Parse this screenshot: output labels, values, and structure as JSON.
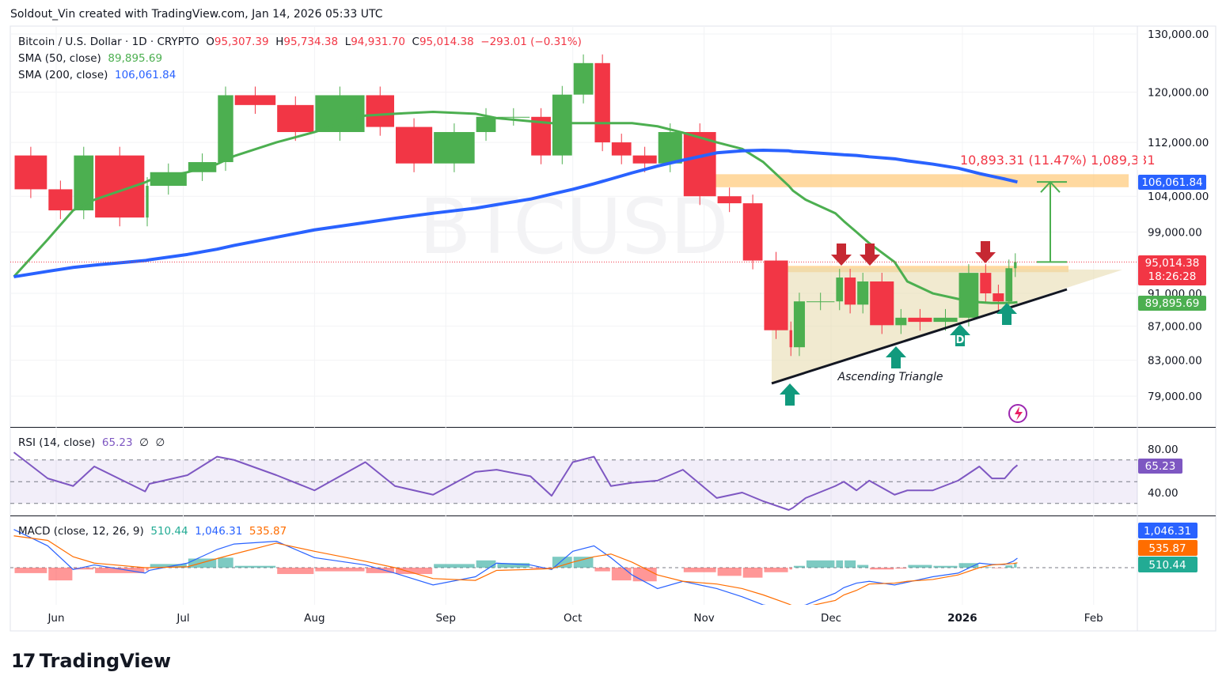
{
  "credit": "Soldout_Vin created with TradingView.com, Jan 14, 2026 05:33 UTC",
  "legend": {
    "symbol": "Bitcoin / U.S. Dollar · 1D · CRYPTO",
    "o_label": "O",
    "o": "95,307.39",
    "h_label": "H",
    "h": "95,734.38",
    "l_label": "L",
    "l": "94,931.70",
    "c_label": "C",
    "c": "95,014.38",
    "change": "−293.01 (−0.31%)",
    "sma50_label": "SMA (50, close)",
    "sma50": "89,895.69",
    "sma200_label": "SMA (200, close)",
    "sma200": "106,061.84"
  },
  "rsi_legend": {
    "label": "RSI (14, close)",
    "value": "65.23",
    "extra1": "∅",
    "extra2": "∅"
  },
  "macd_legend": {
    "label": "MACD (close, 12, 26, 9)",
    "hist": "510.44",
    "macd": "1,046.31",
    "signal": "535.87"
  },
  "watermark": "BTCUSD",
  "annotations": {
    "pattern": "Ascending Triangle",
    "point_label": "D",
    "measure": "10,893.31 (11.47%) 1,089,331"
  },
  "badges": {
    "price": "95,014.38",
    "countdown": "18:26:28",
    "sma200": "106,061.84",
    "sma50": "89,895.69",
    "rsi": "65.23",
    "macd": "1,046.31",
    "signal": "535.87",
    "hist": "510.44"
  },
  "brand": "TradingView",
  "colors": {
    "up": "#4caf50",
    "down": "#f23645",
    "sma50": "#4caf50",
    "sma200": "#2962ff",
    "rsi": "#7e57c2",
    "macd": "#2962ff",
    "signal": "#ff6d00",
    "zone": "#ffcc80",
    "triangle": "#e8dcb0",
    "arrow_down": "#c62832",
    "arrow_up": "#119a7d"
  },
  "chart_data": [
    {
      "type": "candlestick",
      "title": "Bitcoin / U.S. Dollar · 1D · CRYPTO",
      "y_scale": "log",
      "ylim": [
        77000,
        131000
      ],
      "y_ticks": [
        "130,000.00",
        "120,000.00",
        "112,000.00",
        "104,000.00",
        "99,000.00",
        "91,000.00",
        "87,000.00",
        "83,000.00",
        "79,000.00"
      ],
      "x_ticks": [
        "Jun",
        "Jul",
        "Aug",
        "Sep",
        "Oct",
        "Nov",
        "Dec",
        "2026",
        "Feb"
      ],
      "dates": [
        "2025-05-22",
        "2025-05-30",
        "2025-06-05",
        "2025-06-10",
        "2025-06-22",
        "2025-06-23",
        "2025-07-02",
        "2025-07-09",
        "2025-07-13",
        "2025-07-23",
        "2025-08-01",
        "2025-08-13",
        "2025-08-20",
        "2025-08-29",
        "2025-09-08",
        "2025-09-13",
        "2025-09-21",
        "2025-09-26",
        "2025-10-01",
        "2025-10-06",
        "2025-10-10",
        "2025-10-15",
        "2025-10-21",
        "2025-10-27",
        "2025-11-04",
        "2025-11-10",
        "2025-11-15",
        "2025-11-21",
        "2025-11-22",
        "2025-11-25",
        "2025-12-02",
        "2025-12-04",
        "2025-12-07",
        "2025-12-10",
        "2025-12-16",
        "2025-12-19",
        "2025-12-25",
        "2025-12-31",
        "2026-01-05",
        "2026-01-08",
        "2026-01-11",
        "2026-01-13",
        "2026-01-14"
      ],
      "close": [
        110000,
        105000,
        102000,
        110000,
        101000,
        105500,
        107500,
        109000,
        119500,
        117900,
        113600,
        119500,
        114400,
        108800,
        113600,
        116000,
        116000,
        110000,
        119600,
        124900,
        112000,
        110000,
        108800,
        113600,
        104000,
        103000,
        95200,
        86500,
        84500,
        90000,
        90000,
        93000,
        89600,
        92500,
        87100,
        88000,
        87500,
        88000,
        93600,
        91000,
        90000,
        94200,
        95014.38
      ],
      "sma50": [
        93100,
        98000,
        102000,
        103500,
        106000,
        106300,
        107500,
        108700,
        109900,
        112000,
        113600,
        116200,
        116500,
        116800,
        116500,
        115800,
        115300,
        115000,
        115000,
        115000,
        115000,
        115000,
        114500,
        113500,
        112000,
        111000,
        109000,
        105500,
        104800,
        103500,
        101600,
        100500,
        99000,
        97500,
        95000,
        92500,
        91000,
        90300,
        89900,
        89800,
        89800,
        89850,
        89895.69
      ],
      "sma200": [
        93100,
        93800,
        94300,
        94600,
        95200,
        95300,
        96000,
        96700,
        97200,
        98300,
        99300,
        100300,
        100900,
        101600,
        102300,
        102800,
        103600,
        104300,
        105000,
        105800,
        106500,
        107400,
        108400,
        109300,
        110400,
        110700,
        110800,
        110700,
        110600,
        110500,
        110200,
        110100,
        110000,
        109800,
        109500,
        109200,
        108700,
        108100,
        107300,
        106900,
        106500,
        106200,
        106061.84
      ],
      "resistance": 94300,
      "target": 106061.84
    },
    {
      "type": "line",
      "title": "RSI (14, close)",
      "ylim": [
        20,
        90
      ],
      "y_ticks": [
        "80.00",
        "40.00"
      ],
      "bands": [
        70,
        50,
        30
      ],
      "dates_ref": "same as price",
      "values": [
        77,
        53,
        46,
        64,
        41,
        48,
        56,
        73,
        70,
        56,
        42,
        68,
        46,
        38,
        59,
        61,
        55,
        37,
        68,
        73,
        46,
        49,
        51,
        61,
        35,
        40,
        32,
        24,
        26,
        35,
        46,
        50,
        42,
        51,
        38,
        42,
        42,
        51,
        64,
        53,
        53,
        62,
        65.23
      ]
    },
    {
      "type": "macd",
      "title": "MACD (close, 12, 26, 9)",
      "macd": [
        4200,
        2400,
        -200,
        300,
        -600,
        -300,
        500,
        2000,
        2600,
        2900,
        1100,
        300,
        -600,
        -1900,
        -1000,
        500,
        300,
        -200,
        1800,
        2400,
        1100,
        -800,
        -2300,
        -1500,
        -2300,
        -3200,
        -4100,
        -4500,
        -4400,
        -4100,
        -2800,
        -2200,
        -1700,
        -1500,
        -1900,
        -1600,
        -1000,
        -600,
        500,
        350,
        350,
        700,
        1046.31
      ],
      "signal": [
        3500,
        3000,
        1200,
        500,
        0,
        0,
        100,
        1000,
        1500,
        2700,
        1800,
        700,
        0,
        -1200,
        -1400,
        -300,
        -200,
        -100,
        600,
        1200,
        1500,
        600,
        -800,
        -1500,
        -1800,
        -2300,
        -3000,
        -4000,
        -4200,
        -4300,
        -3600,
        -3000,
        -2500,
        -1800,
        -1700,
        -1500,
        -1300,
        -800,
        0,
        300,
        400,
        450,
        535.87
      ]
    }
  ]
}
